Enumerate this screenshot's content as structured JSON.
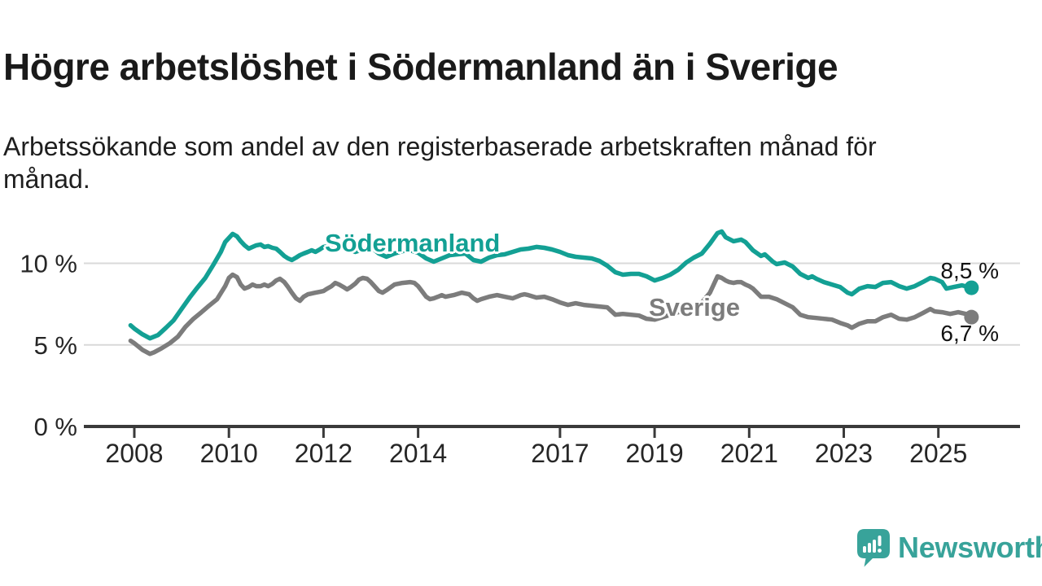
{
  "header": {
    "title": "Högre arbetslöshet i Södermanland än i Sverige",
    "subtitle": "Arbetssökande som andel av den registerbaserade arbetskraften månad för månad."
  },
  "colors": {
    "sodermanland": "#13a094",
    "sverige": "#7c7c7c",
    "grid": "#d9d9d9",
    "axis": "#3a3a3a",
    "tick_text": "#262626",
    "value_text": "#121212",
    "brand": "#38a39a"
  },
  "chart_data": {
    "type": "line",
    "unit": "%",
    "grid": "horizontal",
    "legend_position": "inline-labels",
    "x_axis": {
      "range": [
        2007.8,
        2026.0
      ],
      "ticks": [
        {
          "year": 2008,
          "label": "2008"
        },
        {
          "year": 2010,
          "label": "2010"
        },
        {
          "year": 2012,
          "label": "2012"
        },
        {
          "year": 2014,
          "label": "2014"
        },
        {
          "year": 2017,
          "label": "2017"
        },
        {
          "year": 2019,
          "label": "2019"
        },
        {
          "year": 2021,
          "label": "2021"
        },
        {
          "year": 2023,
          "label": "2023"
        },
        {
          "year": 2025,
          "label": "2025"
        }
      ]
    },
    "y_axis": {
      "range": [
        0,
        12.6
      ],
      "ticks": [
        {
          "value": 0,
          "label": "0 %"
        },
        {
          "value": 5,
          "label": "5 %"
        },
        {
          "value": 10,
          "label": "10 %"
        }
      ]
    },
    "series": [
      {
        "name": "Södermanland",
        "color": "#13a094",
        "end_label": "8,5 %",
        "end_value": 8.5,
        "points": [
          [
            2007.92,
            6.2
          ],
          [
            2008.0,
            6.0
          ],
          [
            2008.17,
            5.65
          ],
          [
            2008.33,
            5.4
          ],
          [
            2008.5,
            5.6
          ],
          [
            2008.67,
            6.05
          ],
          [
            2008.83,
            6.5
          ],
          [
            2009.0,
            7.2
          ],
          [
            2009.17,
            7.9
          ],
          [
            2009.33,
            8.5
          ],
          [
            2009.5,
            9.1
          ],
          [
            2009.67,
            9.9
          ],
          [
            2009.83,
            10.7
          ],
          [
            2009.92,
            11.3
          ],
          [
            2010.08,
            11.8
          ],
          [
            2010.17,
            11.65
          ],
          [
            2010.25,
            11.35
          ],
          [
            2010.33,
            11.1
          ],
          [
            2010.42,
            10.9
          ],
          [
            2010.5,
            11.0
          ],
          [
            2010.58,
            11.1
          ],
          [
            2010.67,
            11.15
          ],
          [
            2010.75,
            11.0
          ],
          [
            2010.83,
            11.05
          ],
          [
            2010.92,
            10.95
          ],
          [
            2011.0,
            10.9
          ],
          [
            2011.08,
            10.7
          ],
          [
            2011.17,
            10.45
          ],
          [
            2011.25,
            10.3
          ],
          [
            2011.33,
            10.2
          ],
          [
            2011.42,
            10.35
          ],
          [
            2011.5,
            10.5
          ],
          [
            2011.58,
            10.6
          ],
          [
            2011.67,
            10.7
          ],
          [
            2011.75,
            10.8
          ],
          [
            2011.83,
            10.7
          ],
          [
            2011.92,
            10.85
          ],
          [
            2012.0,
            11.0
          ],
          [
            2012.17,
            11.1
          ],
          [
            2012.33,
            11.2
          ],
          [
            2012.5,
            10.9
          ],
          [
            2012.67,
            10.7
          ],
          [
            2012.83,
            10.85
          ],
          [
            2013.0,
            11.0
          ],
          [
            2013.17,
            10.6
          ],
          [
            2013.33,
            10.4
          ],
          [
            2013.5,
            10.6
          ],
          [
            2013.67,
            10.75
          ],
          [
            2013.83,
            10.8
          ],
          [
            2014.0,
            10.65
          ],
          [
            2014.17,
            10.3
          ],
          [
            2014.33,
            10.1
          ],
          [
            2014.5,
            10.3
          ],
          [
            2014.67,
            10.5
          ],
          [
            2014.83,
            10.55
          ],
          [
            2015.0,
            10.6
          ],
          [
            2015.17,
            10.2
          ],
          [
            2015.33,
            10.1
          ],
          [
            2015.5,
            10.35
          ],
          [
            2015.67,
            10.5
          ],
          [
            2015.83,
            10.55
          ],
          [
            2016.0,
            10.7
          ],
          [
            2016.17,
            10.85
          ],
          [
            2016.33,
            10.9
          ],
          [
            2016.5,
            11.0
          ],
          [
            2016.67,
            10.95
          ],
          [
            2016.83,
            10.85
          ],
          [
            2017.0,
            10.7
          ],
          [
            2017.17,
            10.5
          ],
          [
            2017.33,
            10.4
          ],
          [
            2017.5,
            10.35
          ],
          [
            2017.67,
            10.3
          ],
          [
            2017.83,
            10.15
          ],
          [
            2018.0,
            9.85
          ],
          [
            2018.17,
            9.45
          ],
          [
            2018.33,
            9.3
          ],
          [
            2018.5,
            9.35
          ],
          [
            2018.67,
            9.35
          ],
          [
            2018.83,
            9.2
          ],
          [
            2019.0,
            8.95
          ],
          [
            2019.17,
            9.1
          ],
          [
            2019.33,
            9.3
          ],
          [
            2019.5,
            9.6
          ],
          [
            2019.67,
            10.05
          ],
          [
            2019.83,
            10.35
          ],
          [
            2020.0,
            10.6
          ],
          [
            2020.17,
            11.2
          ],
          [
            2020.33,
            11.85
          ],
          [
            2020.42,
            11.95
          ],
          [
            2020.5,
            11.6
          ],
          [
            2020.67,
            11.35
          ],
          [
            2020.83,
            11.45
          ],
          [
            2020.92,
            11.3
          ],
          [
            2021.0,
            11.05
          ],
          [
            2021.08,
            10.8
          ],
          [
            2021.25,
            10.45
          ],
          [
            2021.33,
            10.55
          ],
          [
            2021.5,
            10.1
          ],
          [
            2021.58,
            9.95
          ],
          [
            2021.75,
            10.05
          ],
          [
            2021.92,
            9.8
          ],
          [
            2022.08,
            9.35
          ],
          [
            2022.25,
            9.1
          ],
          [
            2022.33,
            9.2
          ],
          [
            2022.42,
            9.05
          ],
          [
            2022.58,
            8.85
          ],
          [
            2022.75,
            8.7
          ],
          [
            2022.92,
            8.55
          ],
          [
            2023.08,
            8.2
          ],
          [
            2023.17,
            8.1
          ],
          [
            2023.33,
            8.45
          ],
          [
            2023.5,
            8.6
          ],
          [
            2023.67,
            8.55
          ],
          [
            2023.83,
            8.8
          ],
          [
            2024.0,
            8.85
          ],
          [
            2024.17,
            8.6
          ],
          [
            2024.33,
            8.45
          ],
          [
            2024.5,
            8.6
          ],
          [
            2024.67,
            8.85
          ],
          [
            2024.83,
            9.1
          ],
          [
            2024.92,
            9.05
          ],
          [
            2025.08,
            8.85
          ],
          [
            2025.17,
            8.45
          ],
          [
            2025.33,
            8.55
          ],
          [
            2025.5,
            8.65
          ],
          [
            2025.7,
            8.5
          ]
        ]
      },
      {
        "name": "Sverige",
        "color": "#7c7c7c",
        "end_label": "6,7 %",
        "end_value": 6.7,
        "points": [
          [
            2007.92,
            5.25
          ],
          [
            2008.0,
            5.1
          ],
          [
            2008.17,
            4.7
          ],
          [
            2008.33,
            4.45
          ],
          [
            2008.42,
            4.55
          ],
          [
            2008.58,
            4.8
          ],
          [
            2008.75,
            5.1
          ],
          [
            2008.92,
            5.5
          ],
          [
            2009.08,
            6.1
          ],
          [
            2009.25,
            6.6
          ],
          [
            2009.42,
            7.0
          ],
          [
            2009.58,
            7.4
          ],
          [
            2009.75,
            7.8
          ],
          [
            2009.92,
            8.6
          ],
          [
            2010.0,
            9.1
          ],
          [
            2010.08,
            9.3
          ],
          [
            2010.17,
            9.15
          ],
          [
            2010.25,
            8.7
          ],
          [
            2010.33,
            8.45
          ],
          [
            2010.42,
            8.55
          ],
          [
            2010.5,
            8.7
          ],
          [
            2010.58,
            8.6
          ],
          [
            2010.67,
            8.6
          ],
          [
            2010.75,
            8.7
          ],
          [
            2010.83,
            8.6
          ],
          [
            2010.92,
            8.75
          ],
          [
            2011.0,
            8.95
          ],
          [
            2011.08,
            9.05
          ],
          [
            2011.17,
            8.85
          ],
          [
            2011.25,
            8.55
          ],
          [
            2011.33,
            8.2
          ],
          [
            2011.42,
            7.85
          ],
          [
            2011.5,
            7.7
          ],
          [
            2011.58,
            7.95
          ],
          [
            2011.67,
            8.1
          ],
          [
            2011.75,
            8.15
          ],
          [
            2011.83,
            8.2
          ],
          [
            2011.92,
            8.25
          ],
          [
            2012.0,
            8.3
          ],
          [
            2012.08,
            8.45
          ],
          [
            2012.17,
            8.6
          ],
          [
            2012.25,
            8.8
          ],
          [
            2012.33,
            8.7
          ],
          [
            2012.42,
            8.55
          ],
          [
            2012.5,
            8.4
          ],
          [
            2012.58,
            8.55
          ],
          [
            2012.67,
            8.75
          ],
          [
            2012.75,
            9.0
          ],
          [
            2012.83,
            9.1
          ],
          [
            2012.92,
            9.05
          ],
          [
            2013.0,
            8.85
          ],
          [
            2013.17,
            8.3
          ],
          [
            2013.25,
            8.2
          ],
          [
            2013.33,
            8.35
          ],
          [
            2013.5,
            8.7
          ],
          [
            2013.67,
            8.8
          ],
          [
            2013.83,
            8.85
          ],
          [
            2013.92,
            8.8
          ],
          [
            2014.0,
            8.6
          ],
          [
            2014.08,
            8.3
          ],
          [
            2014.17,
            7.95
          ],
          [
            2014.25,
            7.8
          ],
          [
            2014.33,
            7.85
          ],
          [
            2014.42,
            7.95
          ],
          [
            2014.5,
            8.05
          ],
          [
            2014.58,
            7.95
          ],
          [
            2014.75,
            8.05
          ],
          [
            2014.92,
            8.2
          ],
          [
            2015.08,
            8.1
          ],
          [
            2015.17,
            7.85
          ],
          [
            2015.25,
            7.7
          ],
          [
            2015.33,
            7.8
          ],
          [
            2015.5,
            7.95
          ],
          [
            2015.67,
            8.05
          ],
          [
            2015.83,
            7.95
          ],
          [
            2016.0,
            7.85
          ],
          [
            2016.17,
            8.05
          ],
          [
            2016.25,
            8.1
          ],
          [
            2016.33,
            8.05
          ],
          [
            2016.5,
            7.9
          ],
          [
            2016.67,
            7.95
          ],
          [
            2016.83,
            7.8
          ],
          [
            2017.0,
            7.6
          ],
          [
            2017.17,
            7.45
          ],
          [
            2017.33,
            7.55
          ],
          [
            2017.5,
            7.45
          ],
          [
            2017.67,
            7.4
          ],
          [
            2017.83,
            7.35
          ],
          [
            2018.0,
            7.3
          ],
          [
            2018.17,
            6.85
          ],
          [
            2018.33,
            6.9
          ],
          [
            2018.5,
            6.85
          ],
          [
            2018.67,
            6.8
          ],
          [
            2018.83,
            6.6
          ],
          [
            2019.0,
            6.55
          ],
          [
            2019.17,
            6.7
          ],
          [
            2019.33,
            6.85
          ],
          [
            2019.5,
            7.0
          ],
          [
            2019.67,
            7.15
          ],
          [
            2019.83,
            7.35
          ],
          [
            2020.0,
            7.6
          ],
          [
            2020.17,
            8.2
          ],
          [
            2020.33,
            9.2
          ],
          [
            2020.42,
            9.1
          ],
          [
            2020.5,
            8.95
          ],
          [
            2020.58,
            8.85
          ],
          [
            2020.67,
            8.8
          ],
          [
            2020.75,
            8.85
          ],
          [
            2020.83,
            8.85
          ],
          [
            2020.92,
            8.7
          ],
          [
            2021.0,
            8.6
          ],
          [
            2021.08,
            8.45
          ],
          [
            2021.25,
            7.95
          ],
          [
            2021.42,
            7.95
          ],
          [
            2021.58,
            7.8
          ],
          [
            2021.75,
            7.55
          ],
          [
            2021.92,
            7.3
          ],
          [
            2022.08,
            6.85
          ],
          [
            2022.25,
            6.7
          ],
          [
            2022.42,
            6.65
          ],
          [
            2022.58,
            6.6
          ],
          [
            2022.75,
            6.55
          ],
          [
            2022.92,
            6.35
          ],
          [
            2023.08,
            6.2
          ],
          [
            2023.17,
            6.05
          ],
          [
            2023.33,
            6.3
          ],
          [
            2023.5,
            6.45
          ],
          [
            2023.67,
            6.45
          ],
          [
            2023.83,
            6.7
          ],
          [
            2024.0,
            6.85
          ],
          [
            2024.17,
            6.6
          ],
          [
            2024.33,
            6.55
          ],
          [
            2024.5,
            6.7
          ],
          [
            2024.67,
            6.95
          ],
          [
            2024.83,
            7.2
          ],
          [
            2024.92,
            7.05
          ],
          [
            2025.08,
            7.0
          ],
          [
            2025.25,
            6.9
          ],
          [
            2025.42,
            7.0
          ],
          [
            2025.58,
            6.9
          ],
          [
            2025.7,
            6.7
          ]
        ]
      }
    ]
  },
  "footer": {
    "brand": "Newsworthy"
  }
}
